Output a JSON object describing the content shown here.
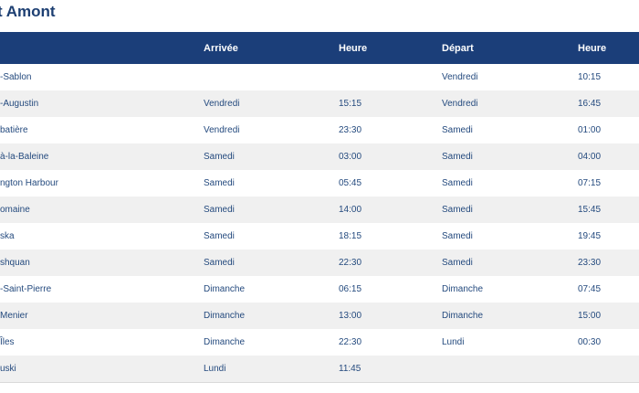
{
  "page": {
    "title": "t Amont"
  },
  "table": {
    "headers": {
      "port": "",
      "arrival_day": "Arrivée",
      "arrival_time": "Heure",
      "departure_day": "Départ",
      "departure_time": "Heure"
    },
    "rows": [
      {
        "port": "-Sablon",
        "arrival_day": "",
        "arrival_time": "",
        "departure_day": "Vendredi",
        "departure_time": "10:15"
      },
      {
        "port": "-Augustin",
        "arrival_day": "Vendredi",
        "arrival_time": "15:15",
        "departure_day": "Vendredi",
        "departure_time": "16:45"
      },
      {
        "port": "batière",
        "arrival_day": "Vendredi",
        "arrival_time": "23:30",
        "departure_day": "Samedi",
        "departure_time": "01:00"
      },
      {
        "port": "à-la-Baleine",
        "arrival_day": "Samedi",
        "arrival_time": "03:00",
        "departure_day": "Samedi",
        "departure_time": "04:00"
      },
      {
        "port": "ngton Harbour",
        "arrival_day": "Samedi",
        "arrival_time": "05:45",
        "departure_day": "Samedi",
        "departure_time": "07:15"
      },
      {
        "port": "omaine",
        "arrival_day": "Samedi",
        "arrival_time": "14:00",
        "departure_day": "Samedi",
        "departure_time": "15:45"
      },
      {
        "port": "ska",
        "arrival_day": "Samedi",
        "arrival_time": "18:15",
        "departure_day": "Samedi",
        "departure_time": "19:45"
      },
      {
        "port": "shquan",
        "arrival_day": "Samedi",
        "arrival_time": "22:30",
        "departure_day": "Samedi",
        "departure_time": "23:30"
      },
      {
        "port": "-Saint-Pierre",
        "arrival_day": "Dimanche",
        "arrival_time": "06:15",
        "departure_day": "Dimanche",
        "departure_time": "07:45"
      },
      {
        "port": "Menier",
        "arrival_day": "Dimanche",
        "arrival_time": "13:00",
        "departure_day": "Dimanche",
        "departure_time": "15:00"
      },
      {
        "port": "Îles",
        "arrival_day": "Dimanche",
        "arrival_time": "22:30",
        "departure_day": "Lundi",
        "departure_time": "00:30"
      },
      {
        "port": "uski",
        "arrival_day": "Lundi",
        "arrival_time": "11:45",
        "departure_day": "",
        "departure_time": ""
      }
    ]
  }
}
